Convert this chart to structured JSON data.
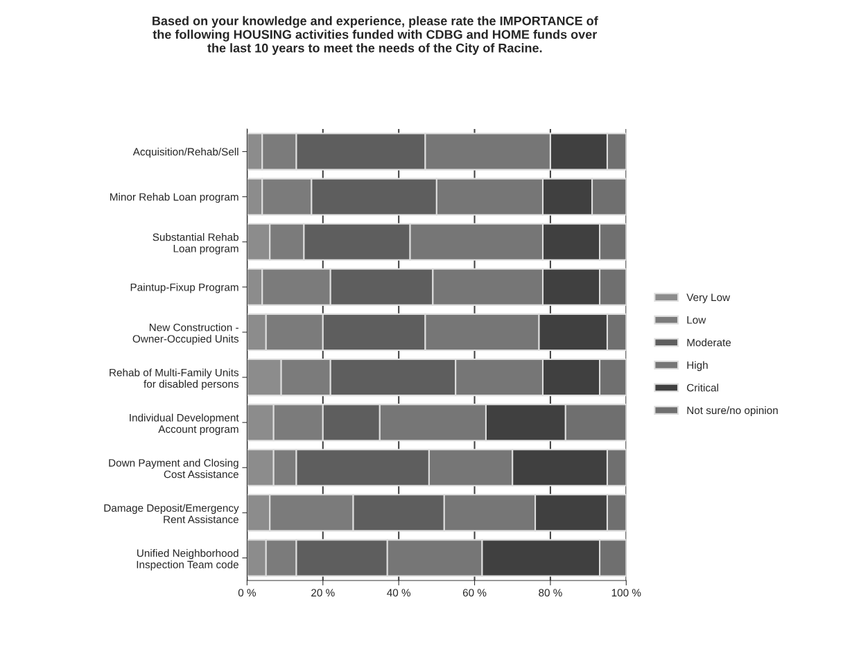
{
  "chart_data": {
    "type": "bar",
    "orientation": "horizontal",
    "stacked": true,
    "title": "Based on your knowledge and experience, please rate the IMPORTANCE of\nthe following HOUSING activities funded with CDBG and HOME funds over\nthe last 10 years to meet the needs of the City of Racine.",
    "categories": [
      "Acquisition/Rehab/Sell",
      "Minor Rehab Loan program",
      "Substantial Rehab\nLoan program",
      "Paintup-Fixup Program",
      "New Construction -\nOwner-Occupied Units",
      "Rehab of Multi-Family Units\nfor disabled persons",
      "Individual Development\nAccount program",
      "Down Payment and Closing\nCost Assistance",
      "Damage Deposit/Emergency\nRent Assistance",
      "Unified Neighborhood\nInspection Team code"
    ],
    "series": [
      {
        "name": "Very Low",
        "color": "#8c8c8c",
        "values": [
          4,
          4,
          6,
          4,
          5,
          9,
          7,
          7,
          6,
          5
        ]
      },
      {
        "name": "Low",
        "color": "#7b7b7b",
        "values": [
          9,
          13,
          9,
          18,
          15,
          13,
          13,
          6,
          22,
          8
        ]
      },
      {
        "name": "Moderate",
        "color": "#5e5e5e",
        "values": [
          34,
          33,
          28,
          27,
          27,
          33,
          15,
          35,
          24,
          24
        ]
      },
      {
        "name": "High",
        "color": "#767676",
        "values": [
          33,
          28,
          35,
          29,
          30,
          23,
          28,
          22,
          24,
          25
        ]
      },
      {
        "name": "Critical",
        "color": "#404040",
        "values": [
          15,
          13,
          15,
          15,
          18,
          15,
          21,
          25,
          19,
          31
        ]
      },
      {
        "name": "Not sure/no opinion",
        "color": "#6f6f6f",
        "values": [
          5,
          9,
          7,
          7,
          5,
          7,
          16,
          5,
          5,
          7
        ]
      }
    ],
    "xlim": [
      0,
      100
    ],
    "xticks": [
      {
        "value": 0,
        "label": "0 %"
      },
      {
        "value": 20,
        "label": "20 %"
      },
      {
        "value": 40,
        "label": "40 %"
      },
      {
        "value": 60,
        "label": "60 %"
      },
      {
        "value": 80,
        "label": "80 %"
      },
      {
        "value": 100,
        "label": "100 %"
      }
    ],
    "grid": "x",
    "legend": "right"
  }
}
